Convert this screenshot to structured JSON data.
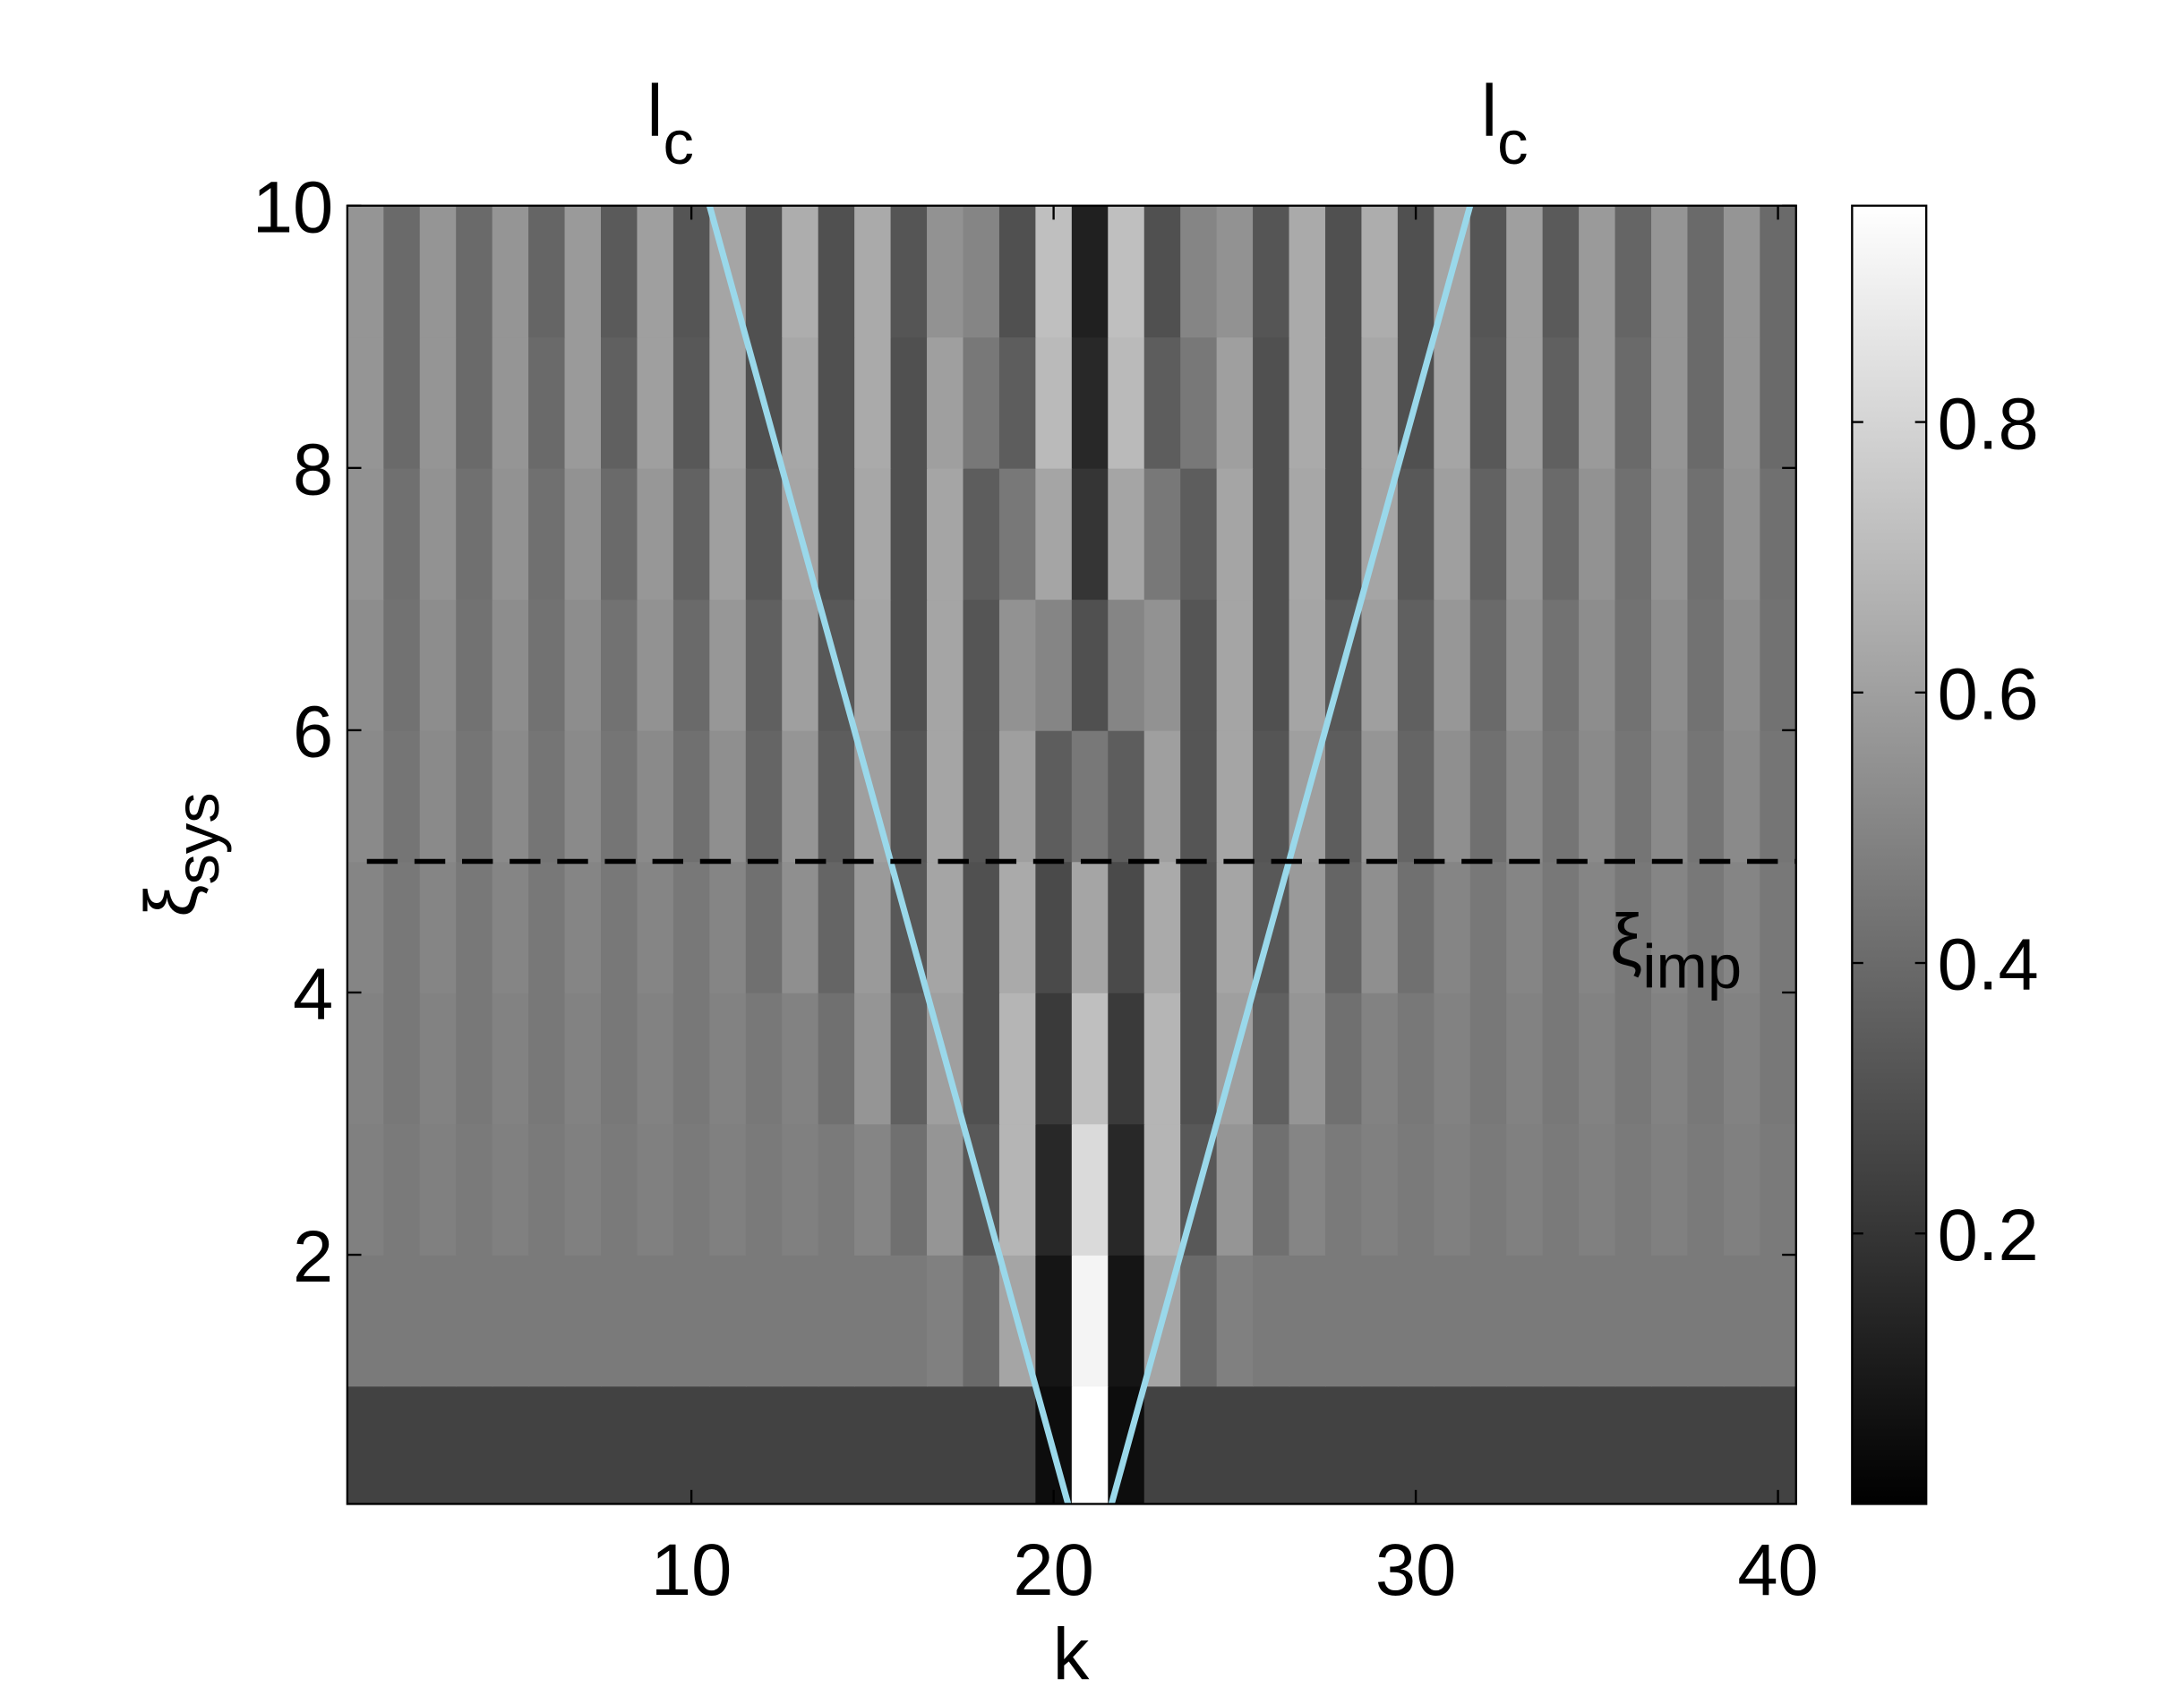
{
  "chart_data": {
    "type": "heatmap",
    "x_label": "k",
    "y_label": {
      "text": "ξ",
      "subscript": "sys"
    },
    "top_labels": [
      {
        "text": "l",
        "subscript": "c"
      },
      {
        "text": "l",
        "subscript": "c"
      }
    ],
    "line_label": {
      "text": "ξ",
      "subscript": "imp"
    },
    "x": [
      1,
      2,
      3,
      4,
      5,
      6,
      7,
      8,
      9,
      10,
      11,
      12,
      13,
      14,
      15,
      16,
      17,
      18,
      19,
      20,
      21,
      22,
      23,
      24,
      25,
      26,
      27,
      28,
      29,
      30,
      31,
      32,
      33,
      34,
      35,
      36,
      37,
      38,
      39,
      40
    ],
    "y": [
      0.5,
      1.5,
      2.5,
      3.5,
      4.5,
      5.5,
      6.5,
      7.5,
      8.5,
      9.5
    ],
    "z": [
      [
        0.25,
        0.25,
        0.25,
        0.25,
        0.25,
        0.25,
        0.25,
        0.25,
        0.25,
        0.25,
        0.25,
        0.25,
        0.25,
        0.25,
        0.25,
        0.25,
        0.25,
        0.25,
        0.25,
        0.05,
        0.97,
        0.05,
        0.25,
        0.25,
        0.25,
        0.25,
        0.25,
        0.25,
        0.25,
        0.25,
        0.25,
        0.25,
        0.25,
        0.25,
        0.25,
        0.25,
        0.25,
        0.25,
        0.25,
        0.25
      ],
      [
        0.46,
        0.46,
        0.46,
        0.46,
        0.46,
        0.46,
        0.46,
        0.46,
        0.46,
        0.46,
        0.46,
        0.46,
        0.46,
        0.46,
        0.46,
        0.46,
        0.48,
        0.4,
        0.62,
        0.08,
        0.92,
        0.08,
        0.62,
        0.4,
        0.48,
        0.46,
        0.46,
        0.46,
        0.46,
        0.46,
        0.46,
        0.46,
        0.46,
        0.46,
        0.46,
        0.46,
        0.46,
        0.46,
        0.46,
        0.46
      ],
      [
        0.48,
        0.46,
        0.48,
        0.46,
        0.48,
        0.46,
        0.48,
        0.46,
        0.48,
        0.46,
        0.48,
        0.46,
        0.48,
        0.46,
        0.5,
        0.42,
        0.56,
        0.33,
        0.68,
        0.15,
        0.82,
        0.15,
        0.68,
        0.33,
        0.56,
        0.42,
        0.5,
        0.46,
        0.48,
        0.46,
        0.48,
        0.46,
        0.48,
        0.46,
        0.48,
        0.46,
        0.48,
        0.46,
        0.48,
        0.46
      ],
      [
        0.49,
        0.45,
        0.49,
        0.45,
        0.49,
        0.45,
        0.49,
        0.45,
        0.49,
        0.45,
        0.49,
        0.45,
        0.49,
        0.42,
        0.56,
        0.36,
        0.6,
        0.3,
        0.68,
        0.22,
        0.72,
        0.22,
        0.68,
        0.3,
        0.6,
        0.36,
        0.56,
        0.42,
        0.49,
        0.45,
        0.49,
        0.45,
        0.49,
        0.45,
        0.49,
        0.45,
        0.49,
        0.45,
        0.49,
        0.45
      ],
      [
        0.5,
        0.45,
        0.5,
        0.45,
        0.5,
        0.45,
        0.5,
        0.45,
        0.5,
        0.45,
        0.5,
        0.42,
        0.54,
        0.38,
        0.58,
        0.33,
        0.62,
        0.3,
        0.64,
        0.28,
        0.62,
        0.28,
        0.64,
        0.3,
        0.62,
        0.33,
        0.58,
        0.38,
        0.54,
        0.42,
        0.5,
        0.45,
        0.5,
        0.45,
        0.5,
        0.45,
        0.5,
        0.45,
        0.5,
        0.45
      ],
      [
        0.52,
        0.44,
        0.52,
        0.44,
        0.52,
        0.44,
        0.52,
        0.44,
        0.52,
        0.42,
        0.54,
        0.38,
        0.56,
        0.35,
        0.6,
        0.32,
        0.62,
        0.32,
        0.6,
        0.35,
        0.45,
        0.35,
        0.6,
        0.32,
        0.62,
        0.32,
        0.6,
        0.35,
        0.56,
        0.38,
        0.54,
        0.42,
        0.52,
        0.44,
        0.52,
        0.44,
        0.52,
        0.44,
        0.52,
        0.44
      ],
      [
        0.53,
        0.43,
        0.53,
        0.43,
        0.53,
        0.43,
        0.53,
        0.43,
        0.55,
        0.4,
        0.57,
        0.36,
        0.6,
        0.33,
        0.62,
        0.3,
        0.62,
        0.32,
        0.55,
        0.5,
        0.3,
        0.5,
        0.55,
        0.32,
        0.62,
        0.3,
        0.62,
        0.33,
        0.6,
        0.36,
        0.57,
        0.4,
        0.55,
        0.43,
        0.53,
        0.43,
        0.53,
        0.43,
        0.53,
        0.43
      ],
      [
        0.55,
        0.42,
        0.55,
        0.42,
        0.55,
        0.42,
        0.55,
        0.4,
        0.57,
        0.37,
        0.6,
        0.33,
        0.62,
        0.3,
        0.63,
        0.3,
        0.62,
        0.35,
        0.45,
        0.62,
        0.2,
        0.62,
        0.45,
        0.35,
        0.62,
        0.3,
        0.63,
        0.3,
        0.62,
        0.33,
        0.6,
        0.37,
        0.57,
        0.4,
        0.55,
        0.42,
        0.55,
        0.42,
        0.55,
        0.42
      ],
      [
        0.56,
        0.4,
        0.56,
        0.4,
        0.56,
        0.4,
        0.58,
        0.36,
        0.6,
        0.33,
        0.62,
        0.3,
        0.63,
        0.3,
        0.64,
        0.3,
        0.6,
        0.45,
        0.35,
        0.7,
        0.15,
        0.7,
        0.35,
        0.45,
        0.6,
        0.3,
        0.64,
        0.3,
        0.63,
        0.3,
        0.62,
        0.33,
        0.6,
        0.36,
        0.58,
        0.4,
        0.56,
        0.4,
        0.56,
        0.4
      ],
      [
        0.56,
        0.4,
        0.56,
        0.4,
        0.56,
        0.38,
        0.58,
        0.34,
        0.6,
        0.32,
        0.62,
        0.3,
        0.65,
        0.3,
        0.64,
        0.32,
        0.55,
        0.5,
        0.3,
        0.72,
        0.12,
        0.72,
        0.3,
        0.5,
        0.55,
        0.32,
        0.64,
        0.3,
        0.65,
        0.3,
        0.62,
        0.32,
        0.6,
        0.34,
        0.58,
        0.38,
        0.56,
        0.4,
        0.56,
        0.4
      ]
    ],
    "xlim": [
      0.5,
      40.5
    ],
    "ylim": [
      0.1,
      10
    ],
    "xticks": [
      10,
      20,
      30,
      40
    ],
    "yticks": [
      2,
      4,
      6,
      8,
      10
    ],
    "colormap": "gray",
    "clim": [
      0,
      0.96
    ],
    "cticks": [
      0.2,
      0.4,
      0.6,
      0.8
    ],
    "lines": [
      {
        "x": [
          10.5,
          20.4
        ],
        "y": [
          10,
          0.1
        ],
        "color": "#9ad8ea",
        "dashed": false
      },
      {
        "x": [
          31.5,
          21.6
        ],
        "y": [
          10,
          0.1
        ],
        "color": "#9ad8ea",
        "dashed": false
      },
      {
        "x": [
          1.04,
          40.5
        ],
        "y": [
          5,
          5
        ],
        "color": "#000000",
        "dashed": true
      }
    ]
  }
}
